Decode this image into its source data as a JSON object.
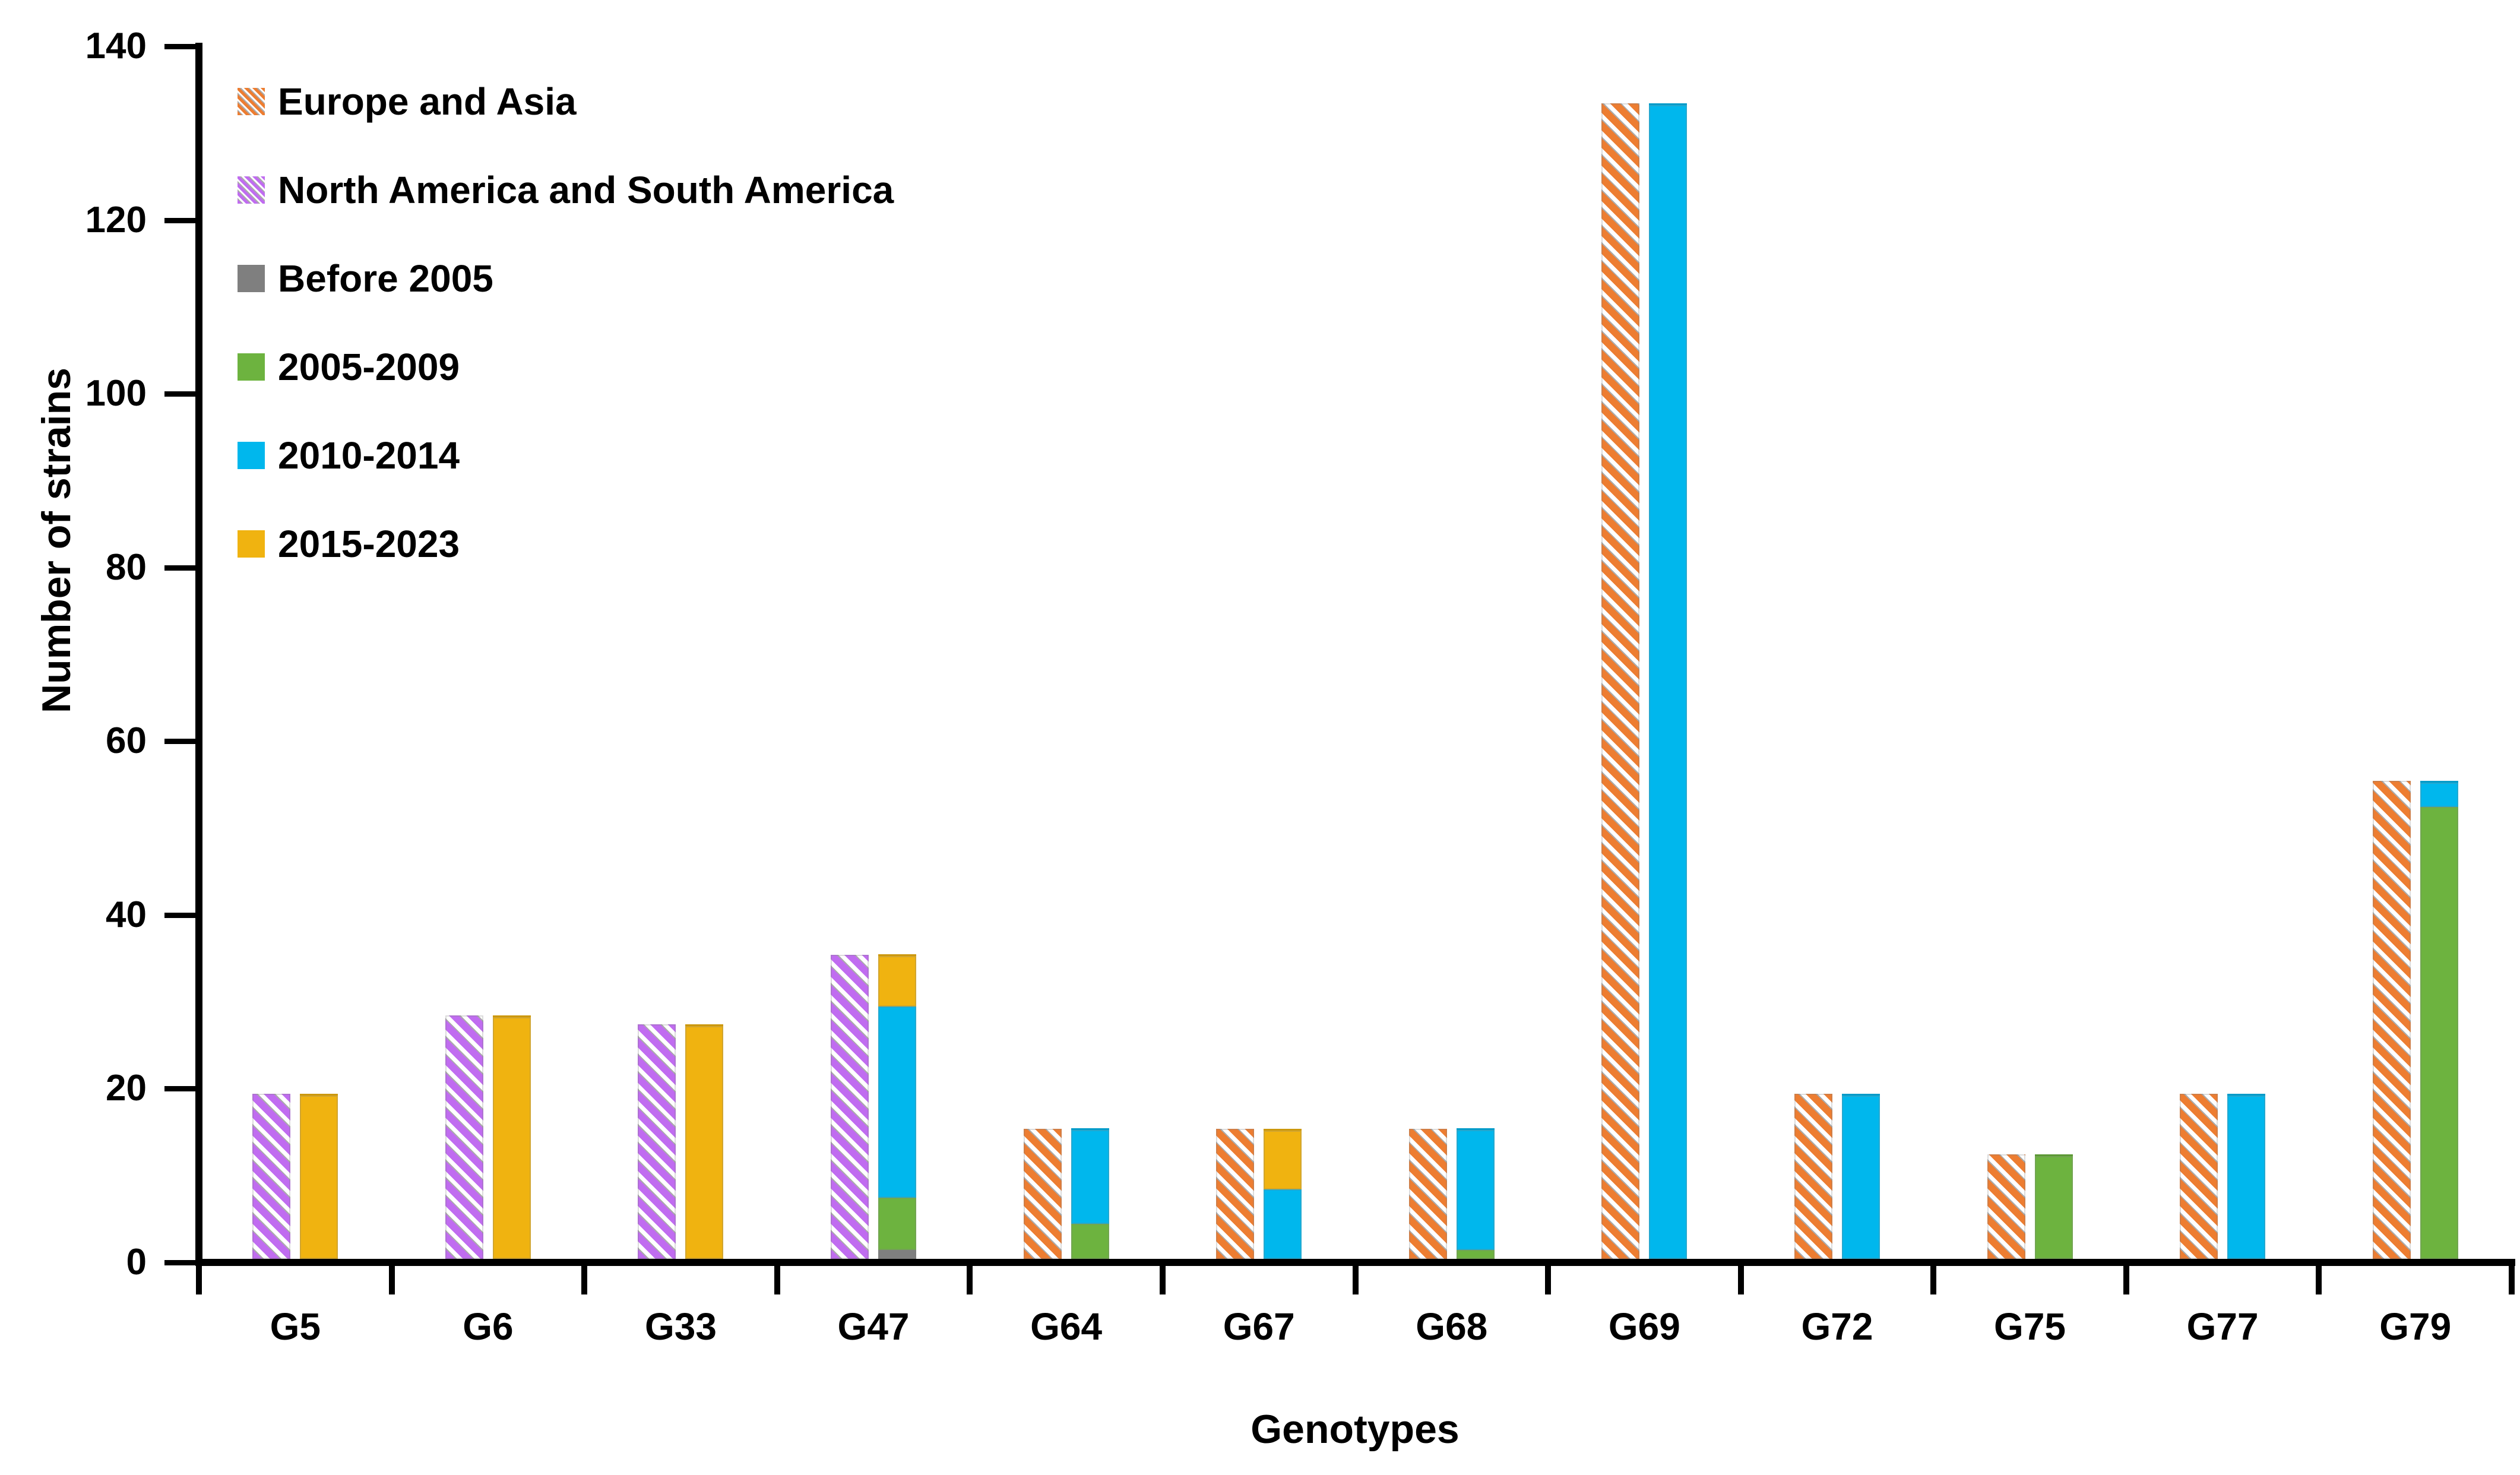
{
  "figure": {
    "y_axis_title": "Number of strains",
    "x_axis_title": "Genotypes"
  },
  "chart_data": {
    "type": "bar",
    "title": "",
    "xlabel": "Genotypes",
    "ylabel": "Number of strains",
    "ylim": [
      0,
      140
    ],
    "yticks": [
      0,
      20,
      40,
      60,
      80,
      100,
      120,
      140
    ],
    "grid": false,
    "legend_position": "top-left-inside-plot",
    "bar_layout": "two bars per genotype: left bar = region of origin (hatched), right bar = isolation period (stacked solid)",
    "categories": [
      "G5",
      "G6",
      "G33",
      "G47",
      "G64",
      "G67",
      "G68",
      "G69",
      "G72",
      "G75",
      "G77",
      "G79"
    ],
    "region_series": [
      {
        "name": "Europe and Asia",
        "style": "hatched",
        "color": "#ED7D31",
        "values": [
          0,
          0,
          0,
          0,
          15,
          15,
          15,
          133,
          19,
          12,
          19,
          55
        ]
      },
      {
        "name": "North America and South America",
        "style": "hatched",
        "color": "#C06CF0",
        "values": [
          19,
          28,
          27,
          35,
          0,
          0,
          0,
          0,
          0,
          0,
          0,
          0
        ]
      }
    ],
    "period_series": [
      {
        "name": "Before 2005",
        "style": "solid",
        "color": "#7F7F7F",
        "values": [
          0,
          0,
          0,
          1,
          0,
          0,
          0,
          0,
          0,
          0,
          0,
          0
        ]
      },
      {
        "name": "2005-2009",
        "style": "solid",
        "color": "#6DB33F",
        "values": [
          0,
          0,
          0,
          6,
          4,
          0,
          1,
          0,
          0,
          12,
          0,
          52
        ]
      },
      {
        "name": "2010-2014",
        "style": "solid",
        "color": "#00B7ED",
        "values": [
          0,
          0,
          0,
          22,
          11,
          8,
          14,
          133,
          19,
          0,
          19,
          3
        ]
      },
      {
        "name": "2015-2023",
        "style": "solid",
        "color": "#F0B310",
        "values": [
          19,
          28,
          27,
          6,
          0,
          7,
          0,
          0,
          0,
          0,
          0,
          0
        ]
      }
    ],
    "legend": [
      {
        "label": "Europe and Asia",
        "color": "#ED7D31",
        "hatched": true
      },
      {
        "label": "North America and South America",
        "color": "#C06CF0",
        "hatched": true
      },
      {
        "label": "Before 2005",
        "color": "#7F7F7F",
        "hatched": false
      },
      {
        "label": "2005-2009",
        "color": "#6DB33F",
        "hatched": false
      },
      {
        "label": "2010-2014",
        "color": "#00B7ED",
        "hatched": false
      },
      {
        "label": "2015-2023",
        "color": "#F0B310",
        "hatched": false
      }
    ],
    "hatch_accent_color": "#ABABAB",
    "axis_color": "#000000"
  }
}
